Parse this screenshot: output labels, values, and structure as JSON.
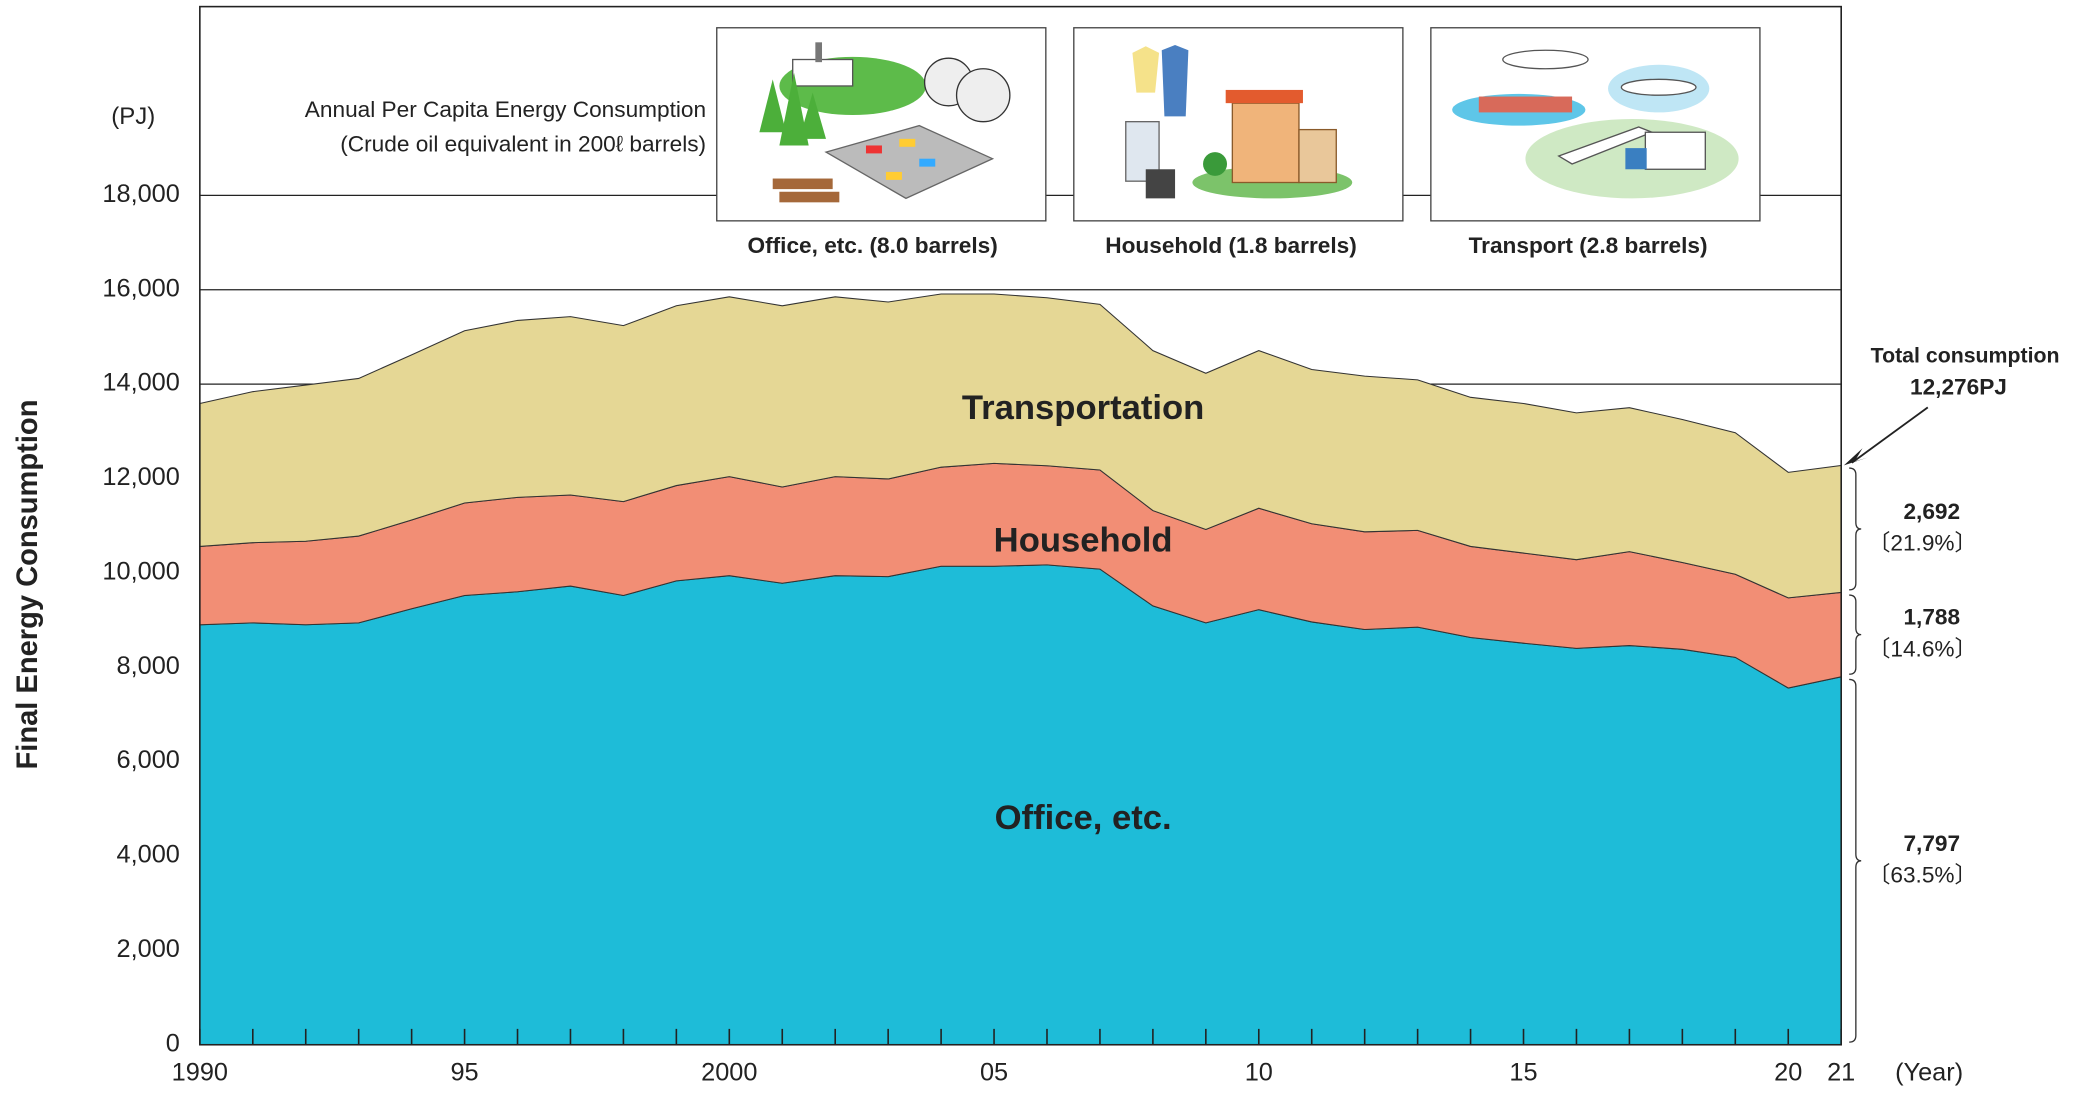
{
  "chart_data": {
    "type": "stacked_area",
    "unit_label": "(PJ)",
    "y_label": "Final Energy Consumption",
    "x_unit_label": "(Year)",
    "x": [
      1990,
      1991,
      1992,
      1993,
      1994,
      1995,
      1996,
      1997,
      1998,
      1999,
      2000,
      2001,
      2002,
      2003,
      2004,
      2005,
      2006,
      2007,
      2008,
      2009,
      2010,
      2011,
      2012,
      2013,
      2014,
      2015,
      2016,
      2017,
      2018,
      2019,
      2020,
      2021
    ],
    "xlim": [
      1990,
      2021
    ],
    "xticks": [
      1990,
      {
        "value": 1995,
        "label": "95"
      },
      2000,
      {
        "value": 2005,
        "label": "05"
      },
      {
        "value": 2010,
        "label": "10"
      },
      {
        "value": 2015,
        "label": "15"
      },
      {
        "value": 2020,
        "label": "20"
      },
      {
        "value": 2021,
        "label": "21"
      }
    ],
    "ylim": [
      0,
      22000
    ],
    "yticks": [
      0,
      {
        "value": 2000,
        "label": "2,000"
      },
      {
        "value": 4000,
        "label": "4,000"
      },
      {
        "value": 6000,
        "label": "6,000"
      },
      {
        "value": 8000,
        "label": "8,000"
      },
      {
        "value": 10000,
        "label": "10,000"
      },
      {
        "value": 12000,
        "label": "12,000"
      },
      {
        "value": 14000,
        "label": "14,000"
      },
      {
        "value": 16000,
        "label": "16,000"
      },
      {
        "value": 18000,
        "label": "18,000"
      }
    ],
    "grid": true,
    "series": [
      {
        "name": "Office, etc.",
        "color": "#1ebcd8",
        "values": [
          8900,
          8940,
          8900,
          8940,
          9240,
          9520,
          9600,
          9720,
          9520,
          9830,
          9940,
          9780,
          9940,
          9920,
          10140,
          10140,
          10170,
          10080,
          9300,
          8940,
          9220,
          8960,
          8800,
          8850,
          8630,
          8510,
          8400,
          8460,
          8380,
          8210,
          7560,
          7797
        ],
        "end_label": "7,797",
        "share_label": "〔63.5%〕"
      },
      {
        "name": "Household",
        "color": "#f28e75",
        "values": [
          1660,
          1700,
          1770,
          1840,
          1880,
          1960,
          2000,
          1930,
          1990,
          2020,
          2100,
          2040,
          2100,
          2070,
          2100,
          2180,
          2100,
          2100,
          2020,
          1980,
          2150,
          2080,
          2070,
          2050,
          1930,
          1910,
          1880,
          1990,
          1840,
          1760,
          1910,
          1788
        ],
        "end_label": "1,788",
        "share_label": "〔14.6%〕"
      },
      {
        "name": "Transportation",
        "color": "#e5d795",
        "values": [
          3030,
          3200,
          3310,
          3340,
          3500,
          3650,
          3750,
          3780,
          3730,
          3810,
          3810,
          3840,
          3810,
          3750,
          3670,
          3590,
          3560,
          3510,
          3390,
          3310,
          3340,
          3270,
          3300,
          3190,
          3160,
          3170,
          3110,
          3050,
          3030,
          3000,
          2660,
          2692
        ],
        "end_label": "2,692",
        "share_label": "〔21.9%〕"
      }
    ],
    "total_title": "Total consumption",
    "total_label": "12,276PJ",
    "inset": {
      "title": "Annual Per Capita Energy Consumption",
      "subtitle": "(Crude oil equivalent in 200ℓ barrels)",
      "panels": [
        "Office, etc. (8.0 barrels)",
        "Household (1.8 barrels)",
        "Transport (2.8 barrels)"
      ]
    }
  }
}
